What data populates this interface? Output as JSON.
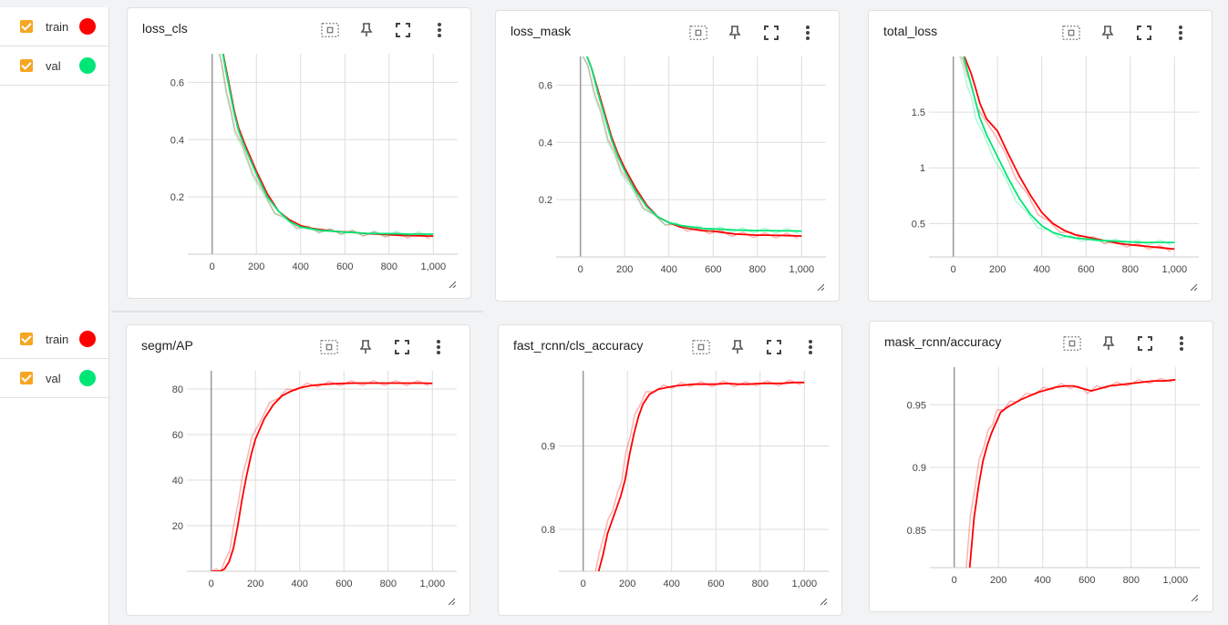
{
  "runs": [
    {
      "name": "train",
      "color": "#ff0000"
    },
    {
      "name": "val",
      "color": "#00e676"
    }
  ],
  "icons": {
    "fit": "fit-domain-icon",
    "pin": "pin-icon",
    "fullscreen": "fullscreen-icon",
    "more": "more-vert-icon",
    "resize": "resize-handle-icon"
  },
  "chart_data": [
    {
      "type": "line",
      "title": "loss_cls",
      "xlim": [
        -110,
        1110
      ],
      "ylim": [
        0.0,
        0.7
      ],
      "xticks": [
        0,
        200,
        400,
        600,
        800,
        1000
      ],
      "xtick_labels": [
        "0",
        "200",
        "400",
        "600",
        "800",
        "1,000"
      ],
      "yticks": [
        0.2,
        0.4,
        0.6
      ],
      "ytick_labels": [
        "0.2",
        "0.4",
        "0.6"
      ],
      "series": [
        {
          "name": "train",
          "color": "#ff0000",
          "x": [
            40,
            60,
            80,
            100,
            120,
            150,
            200,
            250,
            300,
            350,
            400,
            450,
            500,
            550,
            600,
            650,
            700,
            750,
            800,
            850,
            900,
            950,
            1000
          ],
          "y": [
            0.74,
            0.66,
            0.58,
            0.5,
            0.44,
            0.38,
            0.29,
            0.21,
            0.15,
            0.12,
            0.1,
            0.09,
            0.085,
            0.08,
            0.078,
            0.075,
            0.072,
            0.07,
            0.068,
            0.066,
            0.065,
            0.064,
            0.063
          ]
        },
        {
          "name": "val",
          "color": "#00e676",
          "x": [
            40,
            60,
            80,
            100,
            120,
            150,
            200,
            250,
            300,
            350,
            400,
            450,
            500,
            550,
            600,
            650,
            700,
            750,
            800,
            850,
            900,
            950,
            1000
          ],
          "y": [
            0.74,
            0.65,
            0.57,
            0.49,
            0.43,
            0.37,
            0.28,
            0.2,
            0.15,
            0.115,
            0.095,
            0.088,
            0.082,
            0.08,
            0.077,
            0.075,
            0.073,
            0.072,
            0.072,
            0.071,
            0.07,
            0.07,
            0.07
          ]
        }
      ]
    },
    {
      "type": "line",
      "title": "loss_mask",
      "xlim": [
        -110,
        1110
      ],
      "ylim": [
        0.0,
        0.7
      ],
      "xticks": [
        0,
        200,
        400,
        600,
        800,
        1000
      ],
      "xtick_labels": [
        "0",
        "200",
        "400",
        "600",
        "800",
        "1,000"
      ],
      "yticks": [
        0.2,
        0.4,
        0.6
      ],
      "ytick_labels": [
        "0.2",
        "0.4",
        "0.6"
      ],
      "series": [
        {
          "name": "train",
          "color": "#ff0000",
          "x": [
            20,
            50,
            80,
            110,
            140,
            170,
            200,
            250,
            300,
            350,
            400,
            450,
            500,
            550,
            600,
            650,
            700,
            750,
            800,
            850,
            900,
            950,
            1000
          ],
          "y": [
            0.72,
            0.66,
            0.58,
            0.5,
            0.42,
            0.36,
            0.31,
            0.24,
            0.18,
            0.14,
            0.12,
            0.105,
            0.098,
            0.092,
            0.09,
            0.085,
            0.08,
            0.078,
            0.076,
            0.076,
            0.075,
            0.074,
            0.073
          ]
        },
        {
          "name": "val",
          "color": "#00e676",
          "x": [
            20,
            50,
            80,
            110,
            140,
            170,
            200,
            250,
            300,
            350,
            400,
            450,
            500,
            550,
            600,
            650,
            700,
            750,
            800,
            850,
            900,
            950,
            1000
          ],
          "y": [
            0.72,
            0.66,
            0.57,
            0.49,
            0.41,
            0.35,
            0.3,
            0.23,
            0.175,
            0.14,
            0.12,
            0.11,
            0.105,
            0.1,
            0.098,
            0.096,
            0.094,
            0.093,
            0.092,
            0.092,
            0.091,
            0.091,
            0.09
          ]
        }
      ]
    },
    {
      "type": "line",
      "title": "total_loss",
      "xlim": [
        -110,
        1110
      ],
      "ylim": [
        0.2,
        2.0
      ],
      "xticks": [
        0,
        200,
        400,
        600,
        800,
        1000
      ],
      "xtick_labels": [
        "0",
        "200",
        "400",
        "600",
        "800",
        "1,000"
      ],
      "yticks": [
        0.5,
        1.0,
        1.5
      ],
      "ytick_labels": [
        "0.5",
        "1",
        "1.5"
      ],
      "series": [
        {
          "name": "train",
          "color": "#ff0000",
          "x": [
            40,
            60,
            80,
            100,
            120,
            150,
            200,
            250,
            300,
            350,
            400,
            450,
            500,
            550,
            600,
            650,
            700,
            750,
            800,
            850,
            900,
            950,
            1000
          ],
          "y": [
            2.05,
            1.95,
            1.85,
            1.72,
            1.58,
            1.44,
            1.33,
            1.12,
            0.92,
            0.75,
            0.6,
            0.5,
            0.44,
            0.4,
            0.38,
            0.36,
            0.34,
            0.32,
            0.31,
            0.3,
            0.29,
            0.28,
            0.27
          ]
        },
        {
          "name": "val",
          "color": "#00e676",
          "x": [
            40,
            60,
            80,
            100,
            120,
            150,
            200,
            250,
            300,
            350,
            400,
            450,
            500,
            550,
            600,
            650,
            700,
            750,
            800,
            850,
            900,
            950,
            1000
          ],
          "y": [
            2.05,
            1.9,
            1.75,
            1.6,
            1.45,
            1.3,
            1.1,
            0.9,
            0.72,
            0.58,
            0.48,
            0.42,
            0.39,
            0.37,
            0.36,
            0.35,
            0.345,
            0.34,
            0.335,
            0.33,
            0.33,
            0.33,
            0.33
          ]
        }
      ]
    },
    {
      "type": "line",
      "title": "segm/AP",
      "xlim": [
        -110,
        1110
      ],
      "ylim": [
        0,
        88
      ],
      "xticks": [
        0,
        200,
        400,
        600,
        800,
        1000
      ],
      "xtick_labels": [
        "0",
        "200",
        "400",
        "600",
        "800",
        "1,000"
      ],
      "yticks": [
        20,
        40,
        60,
        80
      ],
      "ytick_labels": [
        "20",
        "40",
        "60",
        "80"
      ],
      "series": [
        {
          "name": "train",
          "color": "#ff0000",
          "x": [
            0,
            40,
            60,
            80,
            100,
            120,
            140,
            160,
            180,
            200,
            240,
            280,
            320,
            360,
            400,
            450,
            500,
            550,
            600,
            650,
            700,
            750,
            800,
            850,
            900,
            950,
            1000
          ],
          "y": [
            0,
            0,
            1,
            4,
            10,
            20,
            32,
            42,
            51,
            58,
            67,
            73,
            77,
            79,
            80.5,
            81.5,
            82,
            82.3,
            82.5,
            82.6,
            82.6,
            82.6,
            82.6,
            82.6,
            82.6,
            82.6,
            82.5
          ]
        }
      ]
    },
    {
      "type": "line",
      "title": "fast_rcnn/cls_accuracy",
      "xlim": [
        -110,
        1110
      ],
      "ylim": [
        0.75,
        0.99
      ],
      "xticks": [
        0,
        200,
        400,
        600,
        800,
        1000
      ],
      "xtick_labels": [
        "0",
        "200",
        "400",
        "600",
        "800",
        "1,000"
      ],
      "yticks": [
        0.8,
        0.9
      ],
      "ytick_labels": [
        "0.8",
        "0.9"
      ],
      "series": [
        {
          "name": "train",
          "color": "#ff0000",
          "x": [
            70,
            90,
            110,
            130,
            150,
            170,
            190,
            210,
            230,
            250,
            270,
            300,
            340,
            380,
            420,
            460,
            500,
            550,
            600,
            650,
            700,
            750,
            800,
            850,
            900,
            950,
            1000
          ],
          "y": [
            0.75,
            0.77,
            0.795,
            0.81,
            0.825,
            0.84,
            0.86,
            0.89,
            0.915,
            0.935,
            0.95,
            0.962,
            0.968,
            0.97,
            0.972,
            0.973,
            0.974,
            0.974,
            0.974,
            0.975,
            0.974,
            0.974,
            0.975,
            0.975,
            0.975,
            0.976,
            0.976
          ]
        }
      ]
    },
    {
      "type": "line",
      "title": "mask_rcnn/accuracy",
      "xlim": [
        -110,
        1110
      ],
      "ylim": [
        0.82,
        0.98
      ],
      "xticks": [
        0,
        200,
        400,
        600,
        800,
        1000
      ],
      "xtick_labels": [
        "0",
        "200",
        "400",
        "600",
        "800",
        "1,000"
      ],
      "yticks": [
        0.85,
        0.9,
        0.95
      ],
      "ytick_labels": [
        "0.85",
        "0.9",
        "0.95"
      ],
      "series": [
        {
          "name": "train",
          "color": "#ff0000",
          "x": [
            70,
            90,
            110,
            130,
            150,
            170,
            190,
            210,
            240,
            270,
            300,
            340,
            380,
            420,
            460,
            500,
            540,
            580,
            620,
            660,
            700,
            750,
            800,
            850,
            900,
            950,
            1000
          ],
          "y": [
            0.82,
            0.86,
            0.885,
            0.905,
            0.918,
            0.928,
            0.936,
            0.944,
            0.948,
            0.951,
            0.954,
            0.957,
            0.96,
            0.962,
            0.964,
            0.965,
            0.965,
            0.963,
            0.961,
            0.963,
            0.965,
            0.966,
            0.967,
            0.968,
            0.969,
            0.969,
            0.97
          ]
        }
      ]
    }
  ]
}
